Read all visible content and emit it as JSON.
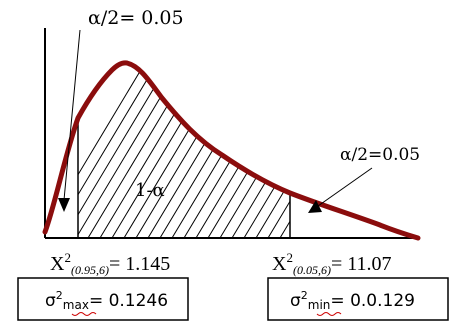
{
  "alpha_left_label": "α/2= 0.05",
  "alpha_right_label": "α/2=0.05",
  "center_label": "1-α",
  "chi_left": {
    "base": "X",
    "power": "2",
    "subscript": "(0.95,6)",
    "value": "= 1.145"
  },
  "chi_right": {
    "base": "X",
    "power": "2",
    "subscript": "(0.05,6)",
    "value": "= 11.07"
  },
  "sigma_max": {
    "base": "σ",
    "power": "2",
    "subscript": "max",
    "value": "= 0.1246"
  },
  "sigma_min": {
    "base": "σ",
    "power": "2",
    "subscript": "min",
    "value": "= 0.0.129"
  },
  "colors": {
    "curve": "#8b0d0d",
    "lines": "#000000"
  }
}
